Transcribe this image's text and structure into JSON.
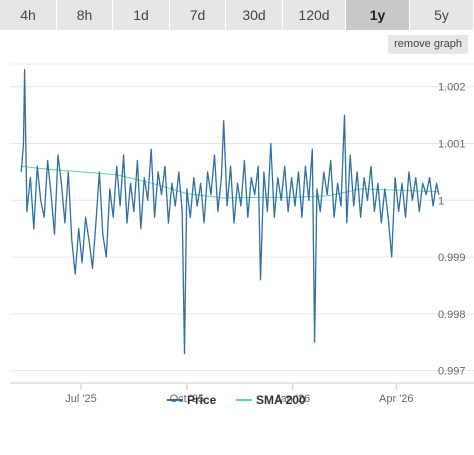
{
  "tabs": [
    {
      "label": "4h",
      "active": false
    },
    {
      "label": "8h",
      "active": false
    },
    {
      "label": "1d",
      "active": false
    },
    {
      "label": "7d",
      "active": false
    },
    {
      "label": "30d",
      "active": false
    },
    {
      "label": "120d",
      "active": false
    },
    {
      "label": "1y",
      "active": true
    },
    {
      "label": "5y",
      "active": false
    }
  ],
  "remove_graph_label": "remove graph",
  "chart_data": {
    "type": "line",
    "x_range": [
      "2025-05-09",
      "2026-05-09"
    ],
    "ylim": [
      0.9968,
      1.0024
    ],
    "y_ticks": [
      {
        "value": 0.997,
        "label": "0.997"
      },
      {
        "value": 0.998,
        "label": "0.998"
      },
      {
        "value": 0.999,
        "label": "0.999"
      },
      {
        "value": 1.0,
        "label": "1"
      },
      {
        "value": 1.001,
        "label": "1.001"
      },
      {
        "value": 1.002,
        "label": "1.002"
      }
    ],
    "x_ticks": [
      {
        "value": "2025-07-01",
        "label": "Jul '25"
      },
      {
        "value": "2025-10-01",
        "label": "Oct '25"
      },
      {
        "value": "2026-01-01",
        "label": "Jan '26"
      },
      {
        "value": "2026-04-01",
        "label": "Apr '26"
      }
    ],
    "series": [
      {
        "name": "Price",
        "color": "#2f6fa3",
        "points": [
          [
            "2025-05-10",
            1.0005
          ],
          [
            "2025-05-12",
            1.001
          ],
          [
            "2025-05-13",
            1.0023
          ],
          [
            "2025-05-15",
            0.9998
          ],
          [
            "2025-05-18",
            1.0004
          ],
          [
            "2025-05-21",
            0.9995
          ],
          [
            "2025-05-24",
            1.0006
          ],
          [
            "2025-05-27",
            1.0
          ],
          [
            "2025-05-30",
            0.9997
          ],
          [
            "2025-06-02",
            1.0007
          ],
          [
            "2025-06-05",
            1.0001
          ],
          [
            "2025-06-08",
            0.9994
          ],
          [
            "2025-06-11",
            1.0008
          ],
          [
            "2025-06-14",
            1.0003
          ],
          [
            "2025-06-17",
            0.9996
          ],
          [
            "2025-06-20",
            1.0005
          ],
          [
            "2025-06-23",
            0.9993
          ],
          [
            "2025-06-26",
            0.9987
          ],
          [
            "2025-06-29",
            0.9995
          ],
          [
            "2025-07-02",
            0.9989
          ],
          [
            "2025-07-05",
            0.9997
          ],
          [
            "2025-07-08",
            0.9993
          ],
          [
            "2025-07-11",
            0.9988
          ],
          [
            "2025-07-14",
            0.9996
          ],
          [
            "2025-07-17",
            1.0005
          ],
          [
            "2025-07-20",
            0.9994
          ],
          [
            "2025-07-23",
            0.999
          ],
          [
            "2025-07-26",
            1.0002
          ],
          [
            "2025-07-29",
            0.9997
          ],
          [
            "2025-08-01",
            1.0006
          ],
          [
            "2025-08-04",
            0.9999
          ],
          [
            "2025-08-07",
            1.0008
          ],
          [
            "2025-08-10",
            0.9996
          ],
          [
            "2025-08-13",
            1.0003
          ],
          [
            "2025-08-16",
            0.9998
          ],
          [
            "2025-08-19",
            1.0007
          ],
          [
            "2025-08-22",
            0.9995
          ],
          [
            "2025-08-25",
            1.0004
          ],
          [
            "2025-08-28",
            1.0
          ],
          [
            "2025-08-31",
            1.0009
          ],
          [
            "2025-09-03",
            0.9997
          ],
          [
            "2025-09-06",
            1.0005
          ],
          [
            "2025-09-09",
            1.0001
          ],
          [
            "2025-09-12",
            1.0006
          ],
          [
            "2025-09-15",
            0.9996
          ],
          [
            "2025-09-18",
            1.0003
          ],
          [
            "2025-09-21",
            0.9999
          ],
          [
            "2025-09-24",
            1.0005
          ],
          [
            "2025-09-27",
            0.9998
          ],
          [
            "2025-09-29",
            0.9973
          ],
          [
            "2025-10-01",
            1.0002
          ],
          [
            "2025-10-04",
            0.9997
          ],
          [
            "2025-10-07",
            1.0004
          ],
          [
            "2025-10-10",
            0.9999
          ],
          [
            "2025-10-13",
            1.0003
          ],
          [
            "2025-10-16",
            0.9996
          ],
          [
            "2025-10-19",
            1.0005
          ],
          [
            "2025-10-22",
            1.0001
          ],
          [
            "2025-10-25",
            1.0008
          ],
          [
            "2025-10-28",
            0.9998
          ],
          [
            "2025-10-31",
            1.0004
          ],
          [
            "2025-11-02",
            1.0014
          ],
          [
            "2025-11-05",
            0.9999
          ],
          [
            "2025-11-08",
            1.0006
          ],
          [
            "2025-11-11",
            0.9996
          ],
          [
            "2025-11-14",
            1.0003
          ],
          [
            "2025-11-17",
            0.9999
          ],
          [
            "2025-11-20",
            1.0007
          ],
          [
            "2025-11-23",
            0.9997
          ],
          [
            "2025-11-26",
            1.0004
          ],
          [
            "2025-11-29",
            1.0001
          ],
          [
            "2025-12-02",
            1.0006
          ],
          [
            "2025-12-04",
            0.9986
          ],
          [
            "2025-12-07",
            1.0005
          ],
          [
            "2025-12-10",
            0.9998
          ],
          [
            "2025-12-13",
            1.001
          ],
          [
            "2025-12-16",
            0.9997
          ],
          [
            "2025-12-19",
            1.0004
          ],
          [
            "2025-12-22",
            1.0
          ],
          [
            "2025-12-25",
            1.0006
          ],
          [
            "2025-12-28",
            0.9998
          ],
          [
            "2025-12-31",
            1.0004
          ],
          [
            "2026-01-03",
            0.9999
          ],
          [
            "2026-01-06",
            1.0005
          ],
          [
            "2026-01-09",
            0.9997
          ],
          [
            "2026-01-12",
            1.0006
          ],
          [
            "2026-01-15",
            1.0
          ],
          [
            "2026-01-18",
            1.0009
          ],
          [
            "2026-01-20",
            0.9975
          ],
          [
            "2026-01-22",
            1.0002
          ],
          [
            "2026-01-25",
            0.9998
          ],
          [
            "2026-01-28",
            1.0005
          ],
          [
            "2026-01-31",
            1.0001
          ],
          [
            "2026-02-03",
            1.0007
          ],
          [
            "2026-02-06",
            0.9997
          ],
          [
            "2026-02-09",
            1.0003
          ],
          [
            "2026-02-12",
            0.9999
          ],
          [
            "2026-02-15",
            1.0015
          ],
          [
            "2026-02-17",
            0.9996
          ],
          [
            "2026-02-20",
            1.0008
          ],
          [
            "2026-02-23",
            0.9999
          ],
          [
            "2026-02-26",
            1.0005
          ],
          [
            "2026-03-01",
            0.9997
          ],
          [
            "2026-03-04",
            1.0004
          ],
          [
            "2026-03-07",
            1.0
          ],
          [
            "2026-03-10",
            1.0006
          ],
          [
            "2026-03-13",
            0.9998
          ],
          [
            "2026-03-16",
            1.0003
          ],
          [
            "2026-03-19",
            0.9996
          ],
          [
            "2026-03-22",
            1.0002
          ],
          [
            "2026-03-25",
            0.9997
          ],
          [
            "2026-03-28",
            0.999
          ],
          [
            "2026-03-31",
            1.0004
          ],
          [
            "2026-04-03",
            0.9998
          ],
          [
            "2026-04-06",
            1.0003
          ],
          [
            "2026-04-09",
            0.9997
          ],
          [
            "2026-04-12",
            1.0005
          ],
          [
            "2026-04-15",
            1.0
          ],
          [
            "2026-04-18",
            1.0004
          ],
          [
            "2026-04-21",
            0.9998
          ],
          [
            "2026-04-24",
            1.0003
          ],
          [
            "2026-04-27",
            1.0001
          ],
          [
            "2026-04-30",
            1.0004
          ],
          [
            "2026-05-03",
            0.9999
          ],
          [
            "2026-05-06",
            1.0003
          ],
          [
            "2026-05-08",
            1.0001
          ]
        ]
      },
      {
        "name": "SMA 200",
        "color": "#5fd4a0",
        "points": [
          [
            "2025-05-10",
            1.0006
          ],
          [
            "2025-06-01",
            1.00055
          ],
          [
            "2025-07-01",
            1.0005
          ],
          [
            "2025-08-01",
            1.00045
          ],
          [
            "2025-09-01",
            1.0003
          ],
          [
            "2025-10-01",
            1.00012
          ],
          [
            "2025-11-01",
            1.00004
          ],
          [
            "2025-12-01",
            1.00005
          ],
          [
            "2026-01-01",
            1.00005
          ],
          [
            "2026-02-01",
            1.00008
          ],
          [
            "2026-03-01",
            1.0002
          ],
          [
            "2026-04-01",
            1.00018
          ],
          [
            "2026-05-08",
            1.00015
          ]
        ]
      }
    ],
    "legend_position": "bottom-center"
  }
}
